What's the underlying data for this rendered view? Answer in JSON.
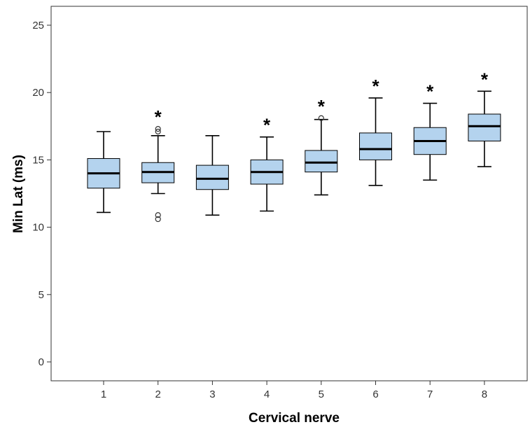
{
  "chart_data": {
    "type": "box",
    "xlabel": "Cervical nerve",
    "ylabel": "Min Lat (ms)",
    "ylim": [
      0,
      26
    ],
    "yticks": [
      0,
      5,
      10,
      15,
      20,
      25
    ],
    "grid": false,
    "colors": {
      "box_fill": "#b4d3ee",
      "stroke": "#000000"
    },
    "categories": [
      "1",
      "2",
      "3",
      "4",
      "5",
      "6",
      "7",
      "8"
    ],
    "boxes": [
      {
        "category": "1",
        "whisker_low": 11.1,
        "q1": 12.9,
        "median": 14.0,
        "q3": 15.1,
        "whisker_high": 17.1,
        "outliers": [],
        "significant": false
      },
      {
        "category": "2",
        "whisker_low": 12.5,
        "q1": 13.3,
        "median": 14.1,
        "q3": 14.8,
        "whisker_high": 16.8,
        "outliers": [
          17.1,
          17.3,
          10.6,
          10.9
        ],
        "significant": true
      },
      {
        "category": "3",
        "whisker_low": 10.9,
        "q1": 12.8,
        "median": 13.6,
        "q3": 14.6,
        "whisker_high": 16.8,
        "outliers": [],
        "significant": false
      },
      {
        "category": "4",
        "whisker_low": 11.2,
        "q1": 13.2,
        "median": 14.1,
        "q3": 15.0,
        "whisker_high": 16.7,
        "outliers": [],
        "significant": true
      },
      {
        "category": "5",
        "whisker_low": 12.4,
        "q1": 14.1,
        "median": 14.8,
        "q3": 15.7,
        "whisker_high": 18.0,
        "outliers": [
          18.1
        ],
        "significant": true
      },
      {
        "category": "6",
        "whisker_low": 13.1,
        "q1": 15.0,
        "median": 15.8,
        "q3": 17.0,
        "whisker_high": 19.6,
        "outliers": [],
        "significant": true
      },
      {
        "category": "7",
        "whisker_low": 13.5,
        "q1": 15.4,
        "median": 16.4,
        "q3": 17.4,
        "whisker_high": 19.2,
        "outliers": [],
        "significant": true
      },
      {
        "category": "8",
        "whisker_low": 14.5,
        "q1": 16.4,
        "median": 17.5,
        "q3": 18.4,
        "whisker_high": 20.1,
        "outliers": [],
        "significant": true
      }
    ],
    "significance_marker": "*"
  }
}
